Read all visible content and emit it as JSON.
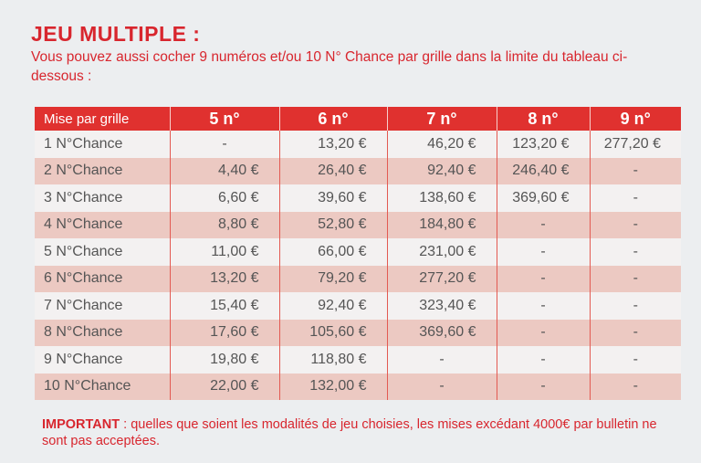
{
  "title": "JEU MULTIPLE :",
  "intro": "Vous pouvez aussi cocher 9 numéros et/ou 10 N° Chance par grille dans la limite du tableau ci-dessous :",
  "table": {
    "header": [
      "Mise par grille",
      "5 n°",
      "6 n°",
      "7 n°",
      "8 n°",
      "9 n°"
    ],
    "rows": [
      [
        "1 N°Chance",
        "-",
        "13,20 €",
        "46,20 €",
        "123,20 €",
        "277,20 €"
      ],
      [
        "2 N°Chance",
        "4,40 €",
        "26,40 €",
        "92,40 €",
        "246,40 €",
        "-"
      ],
      [
        "3 N°Chance",
        "6,60 €",
        "39,60 €",
        "138,60 €",
        "369,60 €",
        "-"
      ],
      [
        "4 N°Chance",
        "8,80 €",
        "52,80 €",
        "184,80 €",
        "-",
        "-"
      ],
      [
        "5 N°Chance",
        "11,00 €",
        "66,00 €",
        "231,00 €",
        "-",
        "-"
      ],
      [
        "6 N°Chance",
        "13,20 €",
        "79,20 €",
        "277,20 €",
        "-",
        "-"
      ],
      [
        "7 N°Chance",
        "15,40 €",
        "92,40 €",
        "323,40 €",
        "-",
        "-"
      ],
      [
        "8 N°Chance",
        "17,60 €",
        "105,60 €",
        "369,60 €",
        "-",
        "-"
      ],
      [
        "9 N°Chance",
        "19,80 €",
        "118,80 €",
        "-",
        "-",
        "-"
      ],
      [
        "10 N°Chance",
        "22,00 €",
        "132,00 €",
        "-",
        "-",
        "-"
      ]
    ]
  },
  "important": {
    "label": "IMPORTANT",
    "text": " : quelles que soient les modalités de jeu choisies, les mises excédant 4000€ par bulletin ne sont pas acceptées."
  },
  "colors": {
    "accent": "#d8262e",
    "header_bg": "#e0312f",
    "row_odd": "#f3f1f1",
    "row_even": "#ecc9c2"
  }
}
